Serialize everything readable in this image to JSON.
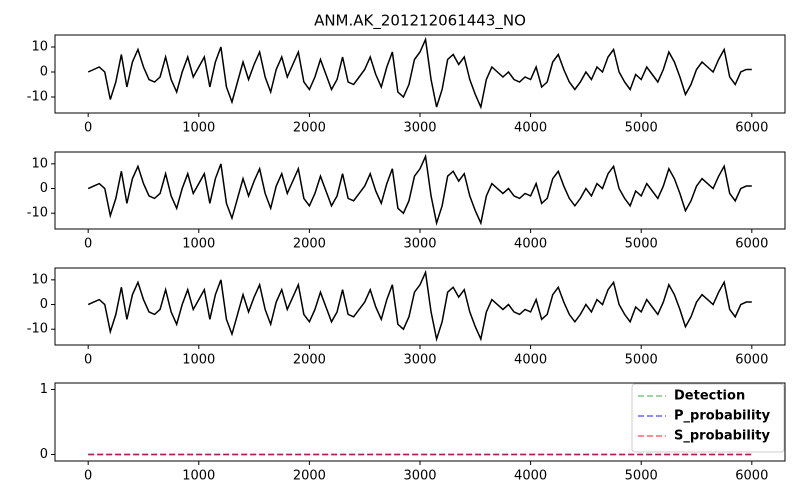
{
  "chart_data": [
    {
      "type": "line",
      "title": "ANM.AK_201212061443_NO",
      "x": [
        0,
        50,
        100,
        150,
        200,
        250,
        300,
        350,
        400,
        450,
        500,
        550,
        600,
        650,
        700,
        750,
        800,
        850,
        900,
        950,
        1000,
        1050,
        1100,
        1150,
        1200,
        1250,
        1300,
        1350,
        1400,
        1450,
        1500,
        1550,
        1600,
        1650,
        1700,
        1750,
        1800,
        1850,
        1900,
        1950,
        2000,
        2050,
        2100,
        2150,
        2200,
        2250,
        2300,
        2350,
        2400,
        2450,
        2500,
        2550,
        2600,
        2650,
        2700,
        2750,
        2800,
        2850,
        2900,
        2950,
        3000,
        3050,
        3100,
        3150,
        3200,
        3250,
        3300,
        3350,
        3400,
        3450,
        3500,
        3550,
        3600,
        3650,
        3700,
        3750,
        3800,
        3850,
        3900,
        3950,
        4000,
        4050,
        4100,
        4150,
        4200,
        4250,
        4300,
        4350,
        4400,
        4450,
        4500,
        4550,
        4600,
        4650,
        4700,
        4750,
        4800,
        4850,
        4900,
        4950,
        5000,
        5050,
        5100,
        5150,
        5200,
        5250,
        5300,
        5350,
        5400,
        5450,
        5500,
        5550,
        5600,
        5650,
        5700,
        5750,
        5800,
        5850,
        5900,
        5950,
        6000
      ],
      "series": [
        {
          "color": "#000000",
          "values": [
            0,
            1,
            2,
            0,
            -11,
            -4,
            7,
            -6,
            4,
            9,
            2,
            -3,
            -4,
            -2,
            6,
            -3,
            -8,
            0,
            6,
            -2,
            2,
            6,
            -6,
            4,
            10,
            -6,
            -12,
            -4,
            4,
            -3,
            3,
            8,
            -2,
            -8,
            1,
            6,
            -2,
            3,
            8,
            -4,
            -7,
            -2,
            5,
            -1,
            -7,
            -3,
            6,
            -4,
            -5,
            -2,
            1,
            6,
            -1,
            -6,
            2,
            8,
            -8,
            -10,
            -5,
            5,
            8,
            13,
            -3,
            -14,
            -7,
            5,
            7,
            3,
            6,
            -3,
            -9,
            -14,
            -3,
            2,
            0,
            -2,
            0,
            -3,
            -4,
            -2,
            -3,
            2,
            -6,
            -4,
            4,
            7,
            1,
            -4,
            -7,
            -4,
            0,
            -3,
            2,
            0,
            6,
            9,
            0,
            -4,
            -7,
            -1,
            -3,
            2,
            -1,
            -4,
            1,
            8,
            4,
            -2,
            -9,
            -5,
            1,
            4,
            2,
            0,
            5,
            9,
            -2,
            -5,
            0,
            1,
            1
          ]
        }
      ],
      "xlim": [
        -300,
        6300
      ],
      "ylim": [
        -16.4,
        14.8
      ],
      "xticks": [
        0,
        1000,
        2000,
        3000,
        4000,
        5000,
        6000
      ],
      "yticks": [
        -10,
        0,
        10
      ]
    },
    {
      "type": "line",
      "x": [
        0,
        50,
        100,
        150,
        200,
        250,
        300,
        350,
        400,
        450,
        500,
        550,
        600,
        650,
        700,
        750,
        800,
        850,
        900,
        950,
        1000,
        1050,
        1100,
        1150,
        1200,
        1250,
        1300,
        1350,
        1400,
        1450,
        1500,
        1550,
        1600,
        1650,
        1700,
        1750,
        1800,
        1850,
        1900,
        1950,
        2000,
        2050,
        2100,
        2150,
        2200,
        2250,
        2300,
        2350,
        2400,
        2450,
        2500,
        2550,
        2600,
        2650,
        2700,
        2750,
        2800,
        2850,
        2900,
        2950,
        3000,
        3050,
        3100,
        3150,
        3200,
        3250,
        3300,
        3350,
        3400,
        3450,
        3500,
        3550,
        3600,
        3650,
        3700,
        3750,
        3800,
        3850,
        3900,
        3950,
        4000,
        4050,
        4100,
        4150,
        4200,
        4250,
        4300,
        4350,
        4400,
        4450,
        4500,
        4550,
        4600,
        4650,
        4700,
        4750,
        4800,
        4850,
        4900,
        4950,
        5000,
        5050,
        5100,
        5150,
        5200,
        5250,
        5300,
        5350,
        5400,
        5450,
        5500,
        5550,
        5600,
        5650,
        5700,
        5750,
        5800,
        5850,
        5900,
        5950,
        6000
      ],
      "series": [
        {
          "color": "#000000",
          "values": [
            0,
            1,
            2,
            0,
            -11,
            -4,
            7,
            -6,
            4,
            9,
            2,
            -3,
            -4,
            -2,
            6,
            -3,
            -8,
            0,
            6,
            -2,
            2,
            6,
            -6,
            4,
            10,
            -6,
            -12,
            -4,
            4,
            -3,
            3,
            8,
            -2,
            -8,
            1,
            6,
            -2,
            3,
            8,
            -4,
            -7,
            -2,
            5,
            -1,
            -7,
            -3,
            6,
            -4,
            -5,
            -2,
            1,
            6,
            -1,
            -6,
            2,
            8,
            -8,
            -10,
            -5,
            5,
            8,
            13,
            -3,
            -14,
            -7,
            5,
            7,
            3,
            6,
            -3,
            -9,
            -14,
            -3,
            2,
            0,
            -2,
            0,
            -3,
            -4,
            -2,
            -3,
            2,
            -6,
            -4,
            4,
            7,
            1,
            -4,
            -7,
            -4,
            0,
            -3,
            2,
            0,
            6,
            9,
            0,
            -4,
            -7,
            -1,
            -3,
            2,
            -1,
            -4,
            1,
            8,
            4,
            -2,
            -9,
            -5,
            1,
            4,
            2,
            0,
            5,
            9,
            -2,
            -5,
            0,
            1,
            1
          ]
        }
      ],
      "xlim": [
        -300,
        6300
      ],
      "ylim": [
        -16.4,
        14.8
      ],
      "xticks": [
        0,
        1000,
        2000,
        3000,
        4000,
        5000,
        6000
      ],
      "yticks": [
        -10,
        0,
        10
      ]
    },
    {
      "type": "line",
      "x": [
        0,
        50,
        100,
        150,
        200,
        250,
        300,
        350,
        400,
        450,
        500,
        550,
        600,
        650,
        700,
        750,
        800,
        850,
        900,
        950,
        1000,
        1050,
        1100,
        1150,
        1200,
        1250,
        1300,
        1350,
        1400,
        1450,
        1500,
        1550,
        1600,
        1650,
        1700,
        1750,
        1800,
        1850,
        1900,
        1950,
        2000,
        2050,
        2100,
        2150,
        2200,
        2250,
        2300,
        2350,
        2400,
        2450,
        2500,
        2550,
        2600,
        2650,
        2700,
        2750,
        2800,
        2850,
        2900,
        2950,
        3000,
        3050,
        3100,
        3150,
        3200,
        3250,
        3300,
        3350,
        3400,
        3450,
        3500,
        3550,
        3600,
        3650,
        3700,
        3750,
        3800,
        3850,
        3900,
        3950,
        4000,
        4050,
        4100,
        4150,
        4200,
        4250,
        4300,
        4350,
        4400,
        4450,
        4500,
        4550,
        4600,
        4650,
        4700,
        4750,
        4800,
        4850,
        4900,
        4950,
        5000,
        5050,
        5100,
        5150,
        5200,
        5250,
        5300,
        5350,
        5400,
        5450,
        5500,
        5550,
        5600,
        5650,
        5700,
        5750,
        5800,
        5850,
        5900,
        5950,
        6000
      ],
      "series": [
        {
          "color": "#000000",
          "values": [
            0,
            1,
            2,
            0,
            -11,
            -4,
            7,
            -6,
            4,
            9,
            2,
            -3,
            -4,
            -2,
            6,
            -3,
            -8,
            0,
            6,
            -2,
            2,
            6,
            -6,
            4,
            10,
            -6,
            -12,
            -4,
            4,
            -3,
            3,
            8,
            -2,
            -8,
            1,
            6,
            -2,
            3,
            8,
            -4,
            -7,
            -2,
            5,
            -1,
            -7,
            -3,
            6,
            -4,
            -5,
            -2,
            1,
            6,
            -1,
            -6,
            2,
            8,
            -8,
            -10,
            -5,
            5,
            8,
            13,
            -3,
            -14,
            -7,
            5,
            7,
            3,
            6,
            -3,
            -9,
            -14,
            -3,
            2,
            0,
            -2,
            0,
            -3,
            -4,
            -2,
            -3,
            2,
            -6,
            -4,
            4,
            7,
            1,
            -4,
            -7,
            -4,
            0,
            -3,
            2,
            0,
            6,
            9,
            0,
            -4,
            -7,
            -1,
            -3,
            2,
            -1,
            -4,
            1,
            8,
            4,
            -2,
            -9,
            -5,
            1,
            4,
            2,
            0,
            5,
            9,
            -2,
            -5,
            0,
            1,
            1
          ]
        }
      ],
      "xlim": [
        -300,
        6300
      ],
      "ylim": [
        -16.4,
        14.8
      ],
      "xticks": [
        0,
        1000,
        2000,
        3000,
        4000,
        5000,
        6000
      ],
      "yticks": [
        -10,
        0,
        10
      ]
    },
    {
      "type": "line",
      "x": [
        0,
        6000
      ],
      "series": [
        {
          "name": "Detection",
          "color": "#2ca02c",
          "values": [
            0,
            0
          ]
        },
        {
          "name": "P_probability",
          "color": "#0000ff",
          "values": [
            0,
            0
          ]
        },
        {
          "name": "S_probability",
          "color": "#ff0000",
          "values": [
            0,
            0
          ]
        }
      ],
      "line_style": "dashed",
      "legend": "upper right",
      "xlim": [
        -300,
        6300
      ],
      "ylim": [
        -0.1,
        1.1
      ],
      "xticks": [
        0,
        1000,
        2000,
        3000,
        4000,
        5000,
        6000
      ],
      "yticks": [
        0,
        1
      ]
    }
  ]
}
